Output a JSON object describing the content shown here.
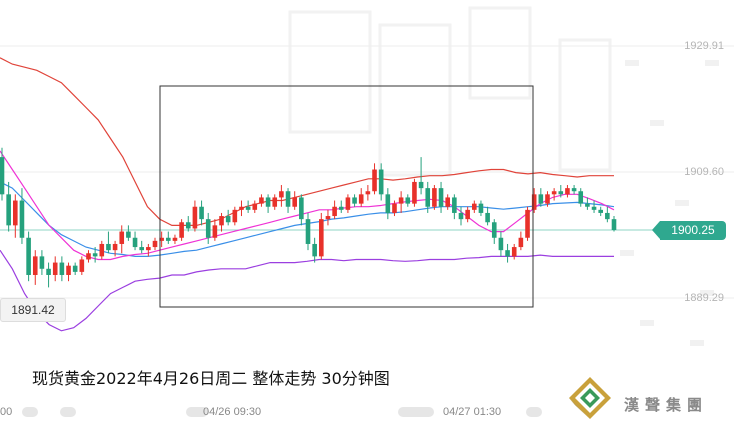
{
  "caption": "现货黄金2022年4月26日周二  整体走势 30分钟图",
  "brand": "漢聲集團",
  "current_price": "1900.25",
  "low_marker": "1891.42",
  "y_ticks": [
    "1929.91",
    "1909.60",
    "1889.29"
  ],
  "x_labels": {
    "left_fragment": "00",
    "t1": "04/26 09:30",
    "t2": "04/27 01:30"
  },
  "colors": {
    "up": "#e8312a",
    "down": "#25a17d",
    "boll": "#e0443a",
    "boll_lower": "#9b3fe0",
    "ma_fast": "#ef33d5",
    "ma_slow": "#3a8fe8",
    "ma_short": "#d9743a"
  },
  "chart_data": {
    "type": "candlestick",
    "ylim": [
      1883,
      1935
    ],
    "y_ticks": [
      1929.91,
      1909.6,
      1889.29
    ],
    "current": 1900.25,
    "candles": [
      [
        1912,
        1913.5,
        1905,
        1906
      ],
      [
        1906,
        1908,
        1900,
        1901
      ],
      [
        1901,
        1906,
        1899,
        1905
      ],
      [
        1905,
        1907,
        1898,
        1899
      ],
      [
        1899,
        1900,
        1892,
        1893
      ],
      [
        1893,
        1897,
        1891.4,
        1896
      ],
      [
        1896,
        1897,
        1893,
        1894
      ],
      [
        1894,
        1895,
        1891,
        1893
      ],
      [
        1893,
        1896,
        1892,
        1895
      ],
      [
        1895,
        1896,
        1892,
        1893
      ],
      [
        1893,
        1895,
        1892,
        1894.5
      ],
      [
        1894.5,
        1895,
        1893,
        1893.5
      ],
      [
        1893.5,
        1896,
        1893,
        1895.5
      ],
      [
        1895.5,
        1897,
        1895,
        1896.5
      ],
      [
        1896.5,
        1897.5,
        1895,
        1896
      ],
      [
        1896,
        1898.5,
        1895.5,
        1898
      ],
      [
        1898,
        1900,
        1896.5,
        1897
      ],
      [
        1897,
        1898.5,
        1896,
        1898
      ],
      [
        1898,
        1901,
        1896.5,
        1900
      ],
      [
        1900,
        1901,
        1898.5,
        1899
      ],
      [
        1899,
        1900,
        1897,
        1897.5
      ],
      [
        1897.5,
        1898.5,
        1896.5,
        1897
      ],
      [
        1897,
        1898,
        1896,
        1897.5
      ],
      [
        1897.5,
        1899,
        1897,
        1898.5
      ],
      [
        1898.5,
        1900,
        1897.5,
        1899
      ],
      [
        1899,
        1900,
        1898,
        1898.5
      ],
      [
        1898.5,
        1899.5,
        1898,
        1899
      ],
      [
        1899,
        1902,
        1898.5,
        1901.5
      ],
      [
        1901.5,
        1902.5,
        1900,
        1900.5
      ],
      [
        1900.5,
        1905,
        1900,
        1904
      ],
      [
        1904,
        1905,
        1901,
        1902
      ],
      [
        1902,
        1903,
        1898,
        1899
      ],
      [
        1899,
        1902,
        1898.5,
        1901
      ],
      [
        1901,
        1903,
        1900,
        1902.5
      ],
      [
        1902.5,
        1903.5,
        1901,
        1901.5
      ],
      [
        1901.5,
        1904,
        1901,
        1903.5
      ],
      [
        1903.5,
        1905,
        1902.5,
        1904
      ],
      [
        1904,
        1905,
        1903,
        1903.5
      ],
      [
        1903.5,
        1905,
        1903,
        1904.5
      ],
      [
        1904.5,
        1906,
        1904,
        1905.5
      ],
      [
        1905.5,
        1906,
        1903,
        1904
      ],
      [
        1904,
        1906,
        1903.5,
        1905.5
      ],
      [
        1905.5,
        1907.5,
        1904,
        1906.5
      ],
      [
        1906.5,
        1907,
        1903,
        1904
      ],
      [
        1904,
        1906.5,
        1903.5,
        1905.5
      ],
      [
        1905.5,
        1906,
        1901,
        1902
      ],
      [
        1902,
        1903,
        1897,
        1898
      ],
      [
        1898,
        1899,
        1895,
        1896
      ],
      [
        1896,
        1903,
        1895.5,
        1902
      ],
      [
        1902,
        1903.5,
        1901,
        1902.5
      ],
      [
        1902.5,
        1905,
        1902,
        1904
      ],
      [
        1904,
        1905,
        1903,
        1903.5
      ],
      [
        1903.5,
        1906,
        1903,
        1905.5
      ],
      [
        1905.5,
        1906,
        1904,
        1904.5
      ],
      [
        1904.5,
        1907,
        1904,
        1906
      ],
      [
        1906,
        1907.5,
        1905,
        1906.5
      ],
      [
        1906.5,
        1911,
        1906,
        1910
      ],
      [
        1910,
        1911,
        1905,
        1906
      ],
      [
        1906,
        1907,
        1902,
        1903
      ],
      [
        1903,
        1905,
        1902.5,
        1904.5
      ],
      [
        1904.5,
        1906.5,
        1903,
        1905.5
      ],
      [
        1905.5,
        1906,
        1904,
        1904.5
      ],
      [
        1904.5,
        1908.5,
        1904,
        1908
      ],
      [
        1908,
        1912,
        1906,
        1907
      ],
      [
        1907,
        1908,
        1903,
        1904
      ],
      [
        1904,
        1907.5,
        1903.5,
        1907
      ],
      [
        1907,
        1908,
        1903,
        1904
      ],
      [
        1904,
        1906,
        1903.5,
        1905.5
      ],
      [
        1905.5,
        1906,
        1902,
        1903
      ],
      [
        1903,
        1904,
        1901,
        1902
      ],
      [
        1902,
        1904,
        1901.5,
        1903.5
      ],
      [
        1903.5,
        1905,
        1903,
        1904.5
      ],
      [
        1904.5,
        1905,
        1902.5,
        1903
      ],
      [
        1903,
        1904,
        1901,
        1901.5
      ],
      [
        1901.5,
        1902,
        1898,
        1899
      ],
      [
        1899,
        1900,
        1896,
        1897
      ],
      [
        1897,
        1898,
        1895,
        1896
      ],
      [
        1896,
        1898,
        1895.5,
        1897.5
      ],
      [
        1897.5,
        1900,
        1897,
        1899
      ],
      [
        1899,
        1904,
        1898.5,
        1903.5
      ],
      [
        1903.5,
        1907,
        1903,
        1906
      ],
      [
        1906,
        1907,
        1904,
        1904.5
      ],
      [
        1904.5,
        1906.5,
        1904,
        1906
      ],
      [
        1906,
        1907,
        1905,
        1906.5
      ],
      [
        1906.5,
        1907.5,
        1905.5,
        1906
      ],
      [
        1906,
        1907.5,
        1905.5,
        1907
      ],
      [
        1907,
        1907.5,
        1906,
        1906.5
      ],
      [
        1906.5,
        1907,
        1904,
        1904.5
      ],
      [
        1904.5,
        1905.5,
        1903.5,
        1904
      ],
      [
        1904,
        1905,
        1903,
        1903.5
      ],
      [
        1903.5,
        1904,
        1902.5,
        1903
      ],
      [
        1903,
        1904,
        1901.5,
        1902
      ],
      [
        1902,
        1902.5,
        1900,
        1900.25
      ]
    ],
    "boll_upper": [
      1928,
      1927,
      1926.5,
      1926,
      1925,
      1924,
      1922,
      1920,
      1918,
      1915,
      1912,
      1908,
      1904,
      1902,
      1901,
      1901,
      1901,
      1901.5,
      1902,
      1903,
      1904,
      1904.5,
      1905,
      1905,
      1905.5,
      1906,
      1906.5,
      1907,
      1907.5,
      1908,
      1908.5,
      1908.5,
      1908.3,
      1908.5,
      1908.8,
      1909,
      1909,
      1909.2,
      1909.5,
      1909.8,
      1910,
      1910,
      1909.5,
      1909.3,
      1909.5,
      1909.2,
      1909,
      1908.8,
      1909,
      1909,
      1909
    ],
    "boll_lower": [
      1897,
      1894,
      1890,
      1887,
      1885,
      1884,
      1884.5,
      1886,
      1888,
      1890,
      1891,
      1892,
      1892.3,
      1892.5,
      1893,
      1893,
      1893.5,
      1893.8,
      1894,
      1894,
      1894,
      1894.5,
      1895,
      1895,
      1895,
      1895.2,
      1895.5,
      1895.5,
      1895.3,
      1895.5,
      1895.5,
      1895.5,
      1895.3,
      1895.2,
      1895.3,
      1895.5,
      1895.5,
      1895.5,
      1895.7,
      1895.8,
      1896,
      1896,
      1896,
      1896,
      1896.2,
      1896,
      1896,
      1896,
      1896,
      1896,
      1896
    ],
    "ma_fast": [
      1913,
      1910,
      1907,
      1904,
      1901,
      1899,
      1897,
      1896,
      1895.5,
      1895.5,
      1896,
      1896.3,
      1896.5,
      1897,
      1897.5,
      1898,
      1898.5,
      1899,
      1899.5,
      1900,
      1900.5,
      1901,
      1901.5,
      1902,
      1902.5,
      1903,
      1903.5,
      1903.5,
      1903.8,
      1904,
      1904,
      1904.2,
      1904.5,
      1904.8,
      1905,
      1905.2,
      1905,
      1904,
      1902.5,
      1901,
      1900,
      1900,
      1901.5,
      1903,
      1904.5,
      1905.5,
      1906,
      1906,
      1905.3,
      1904.5,
      1903.5
    ],
    "ma_slow": [
      1908,
      1907,
      1905,
      1903,
      1901,
      1899.5,
      1898.5,
      1897.5,
      1897,
      1896.5,
      1896.3,
      1896,
      1896,
      1896.2,
      1896.5,
      1896.8,
      1897,
      1897.5,
      1898,
      1898.5,
      1899,
      1899.5,
      1900,
      1900.5,
      1901,
      1901.3,
      1901.6,
      1902,
      1902.2,
      1902.5,
      1902.8,
      1903,
      1903,
      1903.2,
      1903.5,
      1903.8,
      1904,
      1904,
      1904,
      1904,
      1903.8,
      1903.6,
      1903.8,
      1904,
      1904.2,
      1904.5,
      1904.6,
      1904.7,
      1904.5,
      1904.3,
      1904
    ]
  }
}
